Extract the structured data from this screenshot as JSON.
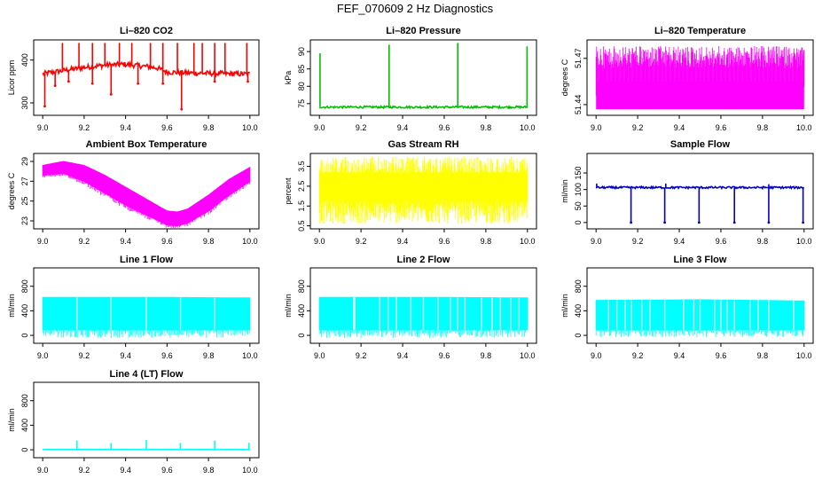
{
  "page": {
    "title": "FEF_070609  2 Hz Diagnostics"
  },
  "x_axis": {
    "range": [
      9.0,
      10.0
    ],
    "ticks": [
      "9.0",
      "9.2",
      "9.4",
      "9.6",
      "9.8",
      "10.0"
    ]
  },
  "chart_data": [
    {
      "type": "line",
      "title": "Li–820 CO2",
      "ylabel": "Licor ppm",
      "color": "#ff0000",
      "xlim": [
        9.0,
        10.0
      ],
      "ylim": [
        278,
        440
      ],
      "yticks": [
        "300",
        "400"
      ],
      "series": [
        {
          "baseline": [
            [
              9.0,
              368
            ],
            [
              9.08,
              374
            ],
            [
              9.2,
              383
            ],
            [
              9.3,
              388
            ],
            [
              9.4,
              390
            ],
            [
              9.5,
              385
            ],
            [
              9.55,
              382
            ],
            [
              9.6,
              372
            ],
            [
              9.7,
              370
            ],
            [
              9.8,
              369
            ],
            [
              9.9,
              368
            ],
            [
              10.0,
              367
            ]
          ],
          "noise": 6,
          "spikes_up": [
            [
              9.095,
              440
            ],
            [
              9.175,
              440
            ],
            [
              9.24,
              440
            ],
            [
              9.3,
              440
            ],
            [
              9.37,
              440
            ],
            [
              9.43,
              440
            ],
            [
              9.52,
              440
            ],
            [
              9.58,
              440
            ],
            [
              9.65,
              440
            ],
            [
              9.73,
              440
            ],
            [
              9.77,
              440
            ],
            [
              9.83,
              440
            ],
            [
              9.88,
              440
            ],
            [
              9.985,
              440
            ]
          ],
          "spikes_down": [
            [
              9.01,
              292
            ],
            [
              9.06,
              340
            ],
            [
              9.125,
              350
            ],
            [
              9.24,
              345
            ],
            [
              9.33,
              320
            ],
            [
              9.46,
              345
            ],
            [
              9.58,
              345
            ],
            [
              9.67,
              285
            ],
            [
              9.83,
              350
            ],
            [
              9.99,
              350
            ]
          ]
        }
      ]
    },
    {
      "type": "line",
      "title": "Li–820 Pressure",
      "ylabel": "kPa",
      "color": "#00c000",
      "xlim": [
        9.0,
        10.0
      ],
      "ylim": [
        72.5,
        92.5
      ],
      "yticks": [
        "75",
        "80",
        "85",
        "90"
      ],
      "series": [
        {
          "baseline": [
            [
              9.0,
              74.0
            ],
            [
              10.0,
              74.0
            ]
          ],
          "noise": 0.3,
          "spikes_up": [
            [
              9.003,
              89.5
            ],
            [
              9.335,
              92.0
            ],
            [
              9.665,
              92.5
            ],
            [
              9.998,
              91.5
            ]
          ],
          "spikes_down": []
        }
      ]
    },
    {
      "type": "line",
      "title": "Li–820 Temperature",
      "ylabel": "degrees C",
      "color": "#ff00ff",
      "xlim": [
        9.0,
        10.0
      ],
      "ylim": [
        51.435,
        51.48
      ],
      "yticks": [
        "51.44",
        "51.47"
      ],
      "series": [
        {
          "band": [
            [
              9.0,
              51.437,
              51.478
            ],
            [
              10.0,
              51.437,
              51.478
            ]
          ],
          "fill_range": [
            51.437,
            51.455
          ],
          "flicker": true
        }
      ]
    },
    {
      "type": "line",
      "title": "Ambient Box Temperature",
      "ylabel": "degrees C",
      "color": "#ff00ff",
      "xlim": [
        9.0,
        10.0
      ],
      "ylim": [
        22.5,
        29.5
      ],
      "yticks": [
        "23",
        "25",
        "27",
        "29"
      ],
      "series": [
        {
          "band": [
            [
              9.0,
              27.6,
              28.6
            ],
            [
              9.1,
              27.8,
              29.0
            ],
            [
              9.2,
              27.0,
              28.6
            ],
            [
              9.3,
              25.8,
              27.6
            ],
            [
              9.4,
              24.6,
              26.4
            ],
            [
              9.5,
              23.6,
              25.2
            ],
            [
              9.6,
              22.6,
              24.0
            ],
            [
              9.65,
              22.5,
              23.9
            ],
            [
              9.7,
              22.8,
              24.2
            ],
            [
              9.8,
              24.0,
              25.6
            ],
            [
              9.9,
              25.6,
              27.2
            ],
            [
              10.0,
              27.0,
              28.4
            ]
          ]
        }
      ]
    },
    {
      "type": "line",
      "title": "Gas Stream RH",
      "ylabel": "percent",
      "color": "#ffff00",
      "xlim": [
        9.0,
        10.0
      ],
      "ylim": [
        0.5,
        4.0
      ],
      "yticks": [
        "0.5",
        "1.5",
        "2.5",
        "3.5"
      ],
      "series": [
        {
          "band": [
            [
              9.0,
              0.6,
              4.0
            ],
            [
              10.0,
              0.6,
              4.0
            ]
          ],
          "fill_range": [
            1.8,
            3.2
          ],
          "flicker": true
        }
      ]
    },
    {
      "type": "line",
      "title": "Sample Flow",
      "ylabel": "ml/min",
      "color": "#0000cd",
      "xlim": [
        9.0,
        10.0
      ],
      "ylim": [
        -10,
        200
      ],
      "yticks": [
        "0",
        "50",
        "100",
        "150"
      ],
      "series": [
        {
          "baseline": [
            [
              9.0,
              106
            ],
            [
              10.0,
              106
            ]
          ],
          "noise": 3,
          "spikes_up": [
            [
              9.003,
              118
            ],
            [
              9.335,
              118
            ],
            [
              9.83,
              116
            ]
          ],
          "spikes_down": [
            [
              9.168,
              0
            ],
            [
              9.33,
              0
            ],
            [
              9.495,
              0
            ],
            [
              9.665,
              0
            ],
            [
              9.83,
              0
            ],
            [
              9.995,
              0
            ]
          ]
        }
      ]
    },
    {
      "type": "line",
      "title": "Line 1 Flow",
      "ylabel": "ml/min",
      "color": "#00ffff",
      "xlim": [
        9.0,
        10.0
      ],
      "ylim": [
        -80,
        1050
      ],
      "yticks": [
        "0",
        "400",
        "800"
      ],
      "series": [
        {
          "band": [
            [
              9.0,
              90,
              620
            ],
            [
              9.5,
              90,
              620
            ],
            [
              10.0,
              90,
              610
            ]
          ],
          "gaps": [
            9.165,
            9.33,
            9.5,
            9.665,
            9.83
          ]
        }
      ]
    },
    {
      "type": "line",
      "title": "Line 2 Flow",
      "ylabel": "ml/min",
      "color": "#00ffff",
      "xlim": [
        9.0,
        10.0
      ],
      "ylim": [
        -80,
        1050
      ],
      "yticks": [
        "0",
        "400",
        "800"
      ],
      "series": [
        {
          "band": [
            [
              9.0,
              90,
              620
            ],
            [
              9.5,
              90,
              620
            ],
            [
              10.0,
              90,
              610
            ]
          ],
          "gaps": [
            9.165,
            9.17,
            9.29,
            9.33,
            9.37,
            9.44,
            9.5,
            9.57,
            9.63,
            9.665,
            9.7,
            9.78,
            9.83,
            9.87,
            9.92,
            9.96
          ]
        }
      ]
    },
    {
      "type": "line",
      "title": "Line 3 Flow",
      "ylabel": "ml/min",
      "color": "#00ffff",
      "xlim": [
        9.0,
        10.0
      ],
      "ylim": [
        -80,
        1050
      ],
      "yticks": [
        "0",
        "400",
        "800"
      ],
      "series": [
        {
          "band": [
            [
              9.0,
              90,
              570
            ],
            [
              9.5,
              90,
              580
            ],
            [
              10.0,
              90,
              560
            ]
          ],
          "gaps": [
            9.06,
            9.1,
            9.14,
            9.17,
            9.22,
            9.26,
            9.33,
            9.42,
            9.47,
            9.5,
            9.57,
            9.6,
            9.63,
            9.665,
            9.74,
            9.78,
            9.83,
            9.95
          ]
        }
      ]
    },
    {
      "type": "line",
      "title": "Line 4 (LT) Flow",
      "ylabel": "ml/min",
      "color": "#00ffff",
      "xlim": [
        9.0,
        10.0
      ],
      "ylim": [
        -80,
        1050
      ],
      "yticks": [
        "0",
        "400",
        "800"
      ],
      "series": [
        {
          "baseline": [
            [
              9.0,
              5
            ],
            [
              10.0,
              5
            ]
          ],
          "noise": 2,
          "spikes_up": [
            [
              9.165,
              150
            ],
            [
              9.33,
              110
            ],
            [
              9.5,
              160
            ],
            [
              9.665,
              110
            ],
            [
              9.83,
              150
            ],
            [
              9.995,
              115
            ]
          ],
          "spikes_down": []
        }
      ]
    }
  ]
}
